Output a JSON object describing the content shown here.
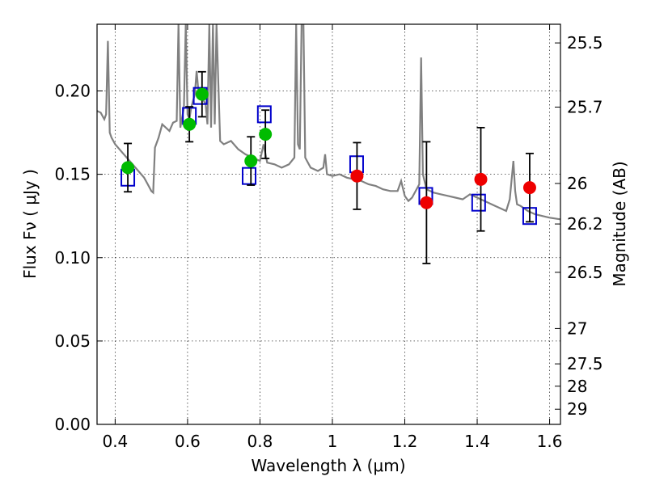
{
  "chart_data": {
    "type": "scatter",
    "xlabel": "Wavelength  λ (μm)",
    "ylabel_left": "Flux  Fν  ( μJy )",
    "ylabel_right": "Magnitude (AB)",
    "xlim": [
      0.35,
      1.63
    ],
    "ylim": [
      0.0,
      0.24
    ],
    "grid": true,
    "x_ticks": [
      0.4,
      0.6,
      0.8,
      1.0,
      1.2,
      1.4,
      1.6
    ],
    "x_tick_labels": [
      "0.4",
      "0.6",
      "0.8",
      "1",
      "1.2",
      "1.4",
      "1.6"
    ],
    "y_ticks": [
      0.0,
      0.05,
      0.1,
      0.15,
      0.2
    ],
    "y_tick_labels": [
      "0.00",
      "0.05",
      "0.10",
      "0.15",
      "0.20"
    ],
    "right_ticks": [
      {
        "flux": 0.2288,
        "label": "25.5"
      },
      {
        "flux": 0.1903,
        "label": "25.7"
      },
      {
        "flux": 0.1445,
        "label": "26"
      },
      {
        "flux": 0.1202,
        "label": "26.2"
      },
      {
        "flux": 0.0912,
        "label": "26.5"
      },
      {
        "flux": 0.0575,
        "label": "27"
      },
      {
        "flux": 0.0363,
        "label": "27.5"
      },
      {
        "flux": 0.0229,
        "label": "28"
      },
      {
        "flux": 0.0091,
        "label": "29"
      }
    ],
    "colors": {
      "spectrum": "#808080",
      "model": "#0000cc",
      "optical": "#00bb00",
      "nir": "#ee0000",
      "errorbar": "#000000"
    },
    "series": [
      {
        "kind": "spectrum",
        "points": [
          [
            0.35,
            0.188
          ],
          [
            0.36,
            0.187
          ],
          [
            0.37,
            0.183
          ],
          [
            0.375,
            0.186
          ],
          [
            0.38,
            0.23
          ],
          [
            0.385,
            0.175
          ],
          [
            0.39,
            0.172
          ],
          [
            0.4,
            0.168
          ],
          [
            0.42,
            0.163
          ],
          [
            0.44,
            0.158
          ],
          [
            0.46,
            0.153
          ],
          [
            0.48,
            0.148
          ],
          [
            0.49,
            0.144
          ],
          [
            0.5,
            0.14
          ],
          [
            0.505,
            0.139
          ],
          [
            0.51,
            0.166
          ],
          [
            0.52,
            0.172
          ],
          [
            0.53,
            0.18
          ],
          [
            0.54,
            0.178
          ],
          [
            0.55,
            0.176
          ],
          [
            0.56,
            0.181
          ],
          [
            0.57,
            0.182
          ],
          [
            0.575,
            0.24
          ],
          [
            0.58,
            0.178
          ],
          [
            0.59,
            0.19
          ],
          [
            0.595,
            0.24
          ],
          [
            0.6,
            0.186
          ],
          [
            0.605,
            0.183
          ],
          [
            0.61,
            0.19
          ],
          [
            0.62,
            0.198
          ],
          [
            0.625,
            0.212
          ],
          [
            0.63,
            0.2
          ],
          [
            0.64,
            0.196
          ],
          [
            0.65,
            0.192
          ],
          [
            0.655,
            0.18
          ],
          [
            0.66,
            0.24
          ],
          [
            0.665,
            0.178
          ],
          [
            0.67,
            0.24
          ],
          [
            0.675,
            0.18
          ],
          [
            0.68,
            0.24
          ],
          [
            0.69,
            0.17
          ],
          [
            0.7,
            0.168
          ],
          [
            0.72,
            0.17
          ],
          [
            0.74,
            0.165
          ],
          [
            0.76,
            0.162
          ],
          [
            0.78,
            0.16
          ],
          [
            0.8,
            0.158
          ],
          [
            0.81,
            0.168
          ],
          [
            0.82,
            0.157
          ],
          [
            0.84,
            0.156
          ],
          [
            0.86,
            0.154
          ],
          [
            0.88,
            0.156
          ],
          [
            0.895,
            0.16
          ],
          [
            0.9,
            0.24
          ],
          [
            0.905,
            0.168
          ],
          [
            0.91,
            0.165
          ],
          [
            0.915,
            0.24
          ],
          [
            0.92,
            0.24
          ],
          [
            0.925,
            0.16
          ],
          [
            0.94,
            0.154
          ],
          [
            0.96,
            0.152
          ],
          [
            0.975,
            0.154
          ],
          [
            0.98,
            0.162
          ],
          [
            0.985,
            0.15
          ],
          [
            1.0,
            0.149
          ],
          [
            1.02,
            0.15
          ],
          [
            1.04,
            0.148
          ],
          [
            1.06,
            0.147
          ],
          [
            1.08,
            0.146
          ],
          [
            1.1,
            0.144
          ],
          [
            1.12,
            0.143
          ],
          [
            1.14,
            0.141
          ],
          [
            1.16,
            0.14
          ],
          [
            1.18,
            0.14
          ],
          [
            1.19,
            0.146
          ],
          [
            1.2,
            0.137
          ],
          [
            1.21,
            0.134
          ],
          [
            1.22,
            0.136
          ],
          [
            1.24,
            0.144
          ],
          [
            1.245,
            0.22
          ],
          [
            1.25,
            0.15
          ],
          [
            1.26,
            0.141
          ],
          [
            1.28,
            0.139
          ],
          [
            1.3,
            0.138
          ],
          [
            1.32,
            0.137
          ],
          [
            1.34,
            0.136
          ],
          [
            1.36,
            0.135
          ],
          [
            1.38,
            0.138
          ],
          [
            1.4,
            0.136
          ],
          [
            1.42,
            0.134
          ],
          [
            1.44,
            0.132
          ],
          [
            1.46,
            0.13
          ],
          [
            1.48,
            0.128
          ],
          [
            1.49,
            0.135
          ],
          [
            1.5,
            0.158
          ],
          [
            1.505,
            0.14
          ],
          [
            1.51,
            0.132
          ],
          [
            1.52,
            0.131
          ],
          [
            1.54,
            0.128
          ],
          [
            1.56,
            0.126
          ],
          [
            1.58,
            0.125
          ],
          [
            1.6,
            0.124
          ],
          [
            1.63,
            0.123
          ]
        ]
      },
      {
        "kind": "model",
        "x": [
          0.435,
          0.605,
          0.635,
          0.77,
          0.812,
          1.067,
          1.258,
          1.404,
          1.545
        ],
        "y": [
          0.148,
          0.185,
          0.197,
          0.149,
          0.186,
          0.156,
          0.137,
          0.133,
          0.125
        ]
      },
      {
        "kind": "optical",
        "x": [
          0.435,
          0.605,
          0.64,
          0.775,
          0.815
        ],
        "y": [
          0.154,
          0.18,
          0.198,
          0.158,
          0.174
        ],
        "yerr": [
          0.0145,
          0.0105,
          0.0135,
          0.0145,
          0.0145
        ]
      },
      {
        "kind": "nir",
        "x": [
          1.068,
          1.26,
          1.41,
          1.545
        ],
        "y": [
          0.149,
          0.133,
          0.147,
          0.142
        ],
        "yerr": [
          0.02,
          0.0365,
          0.031,
          0.0205
        ]
      }
    ]
  }
}
